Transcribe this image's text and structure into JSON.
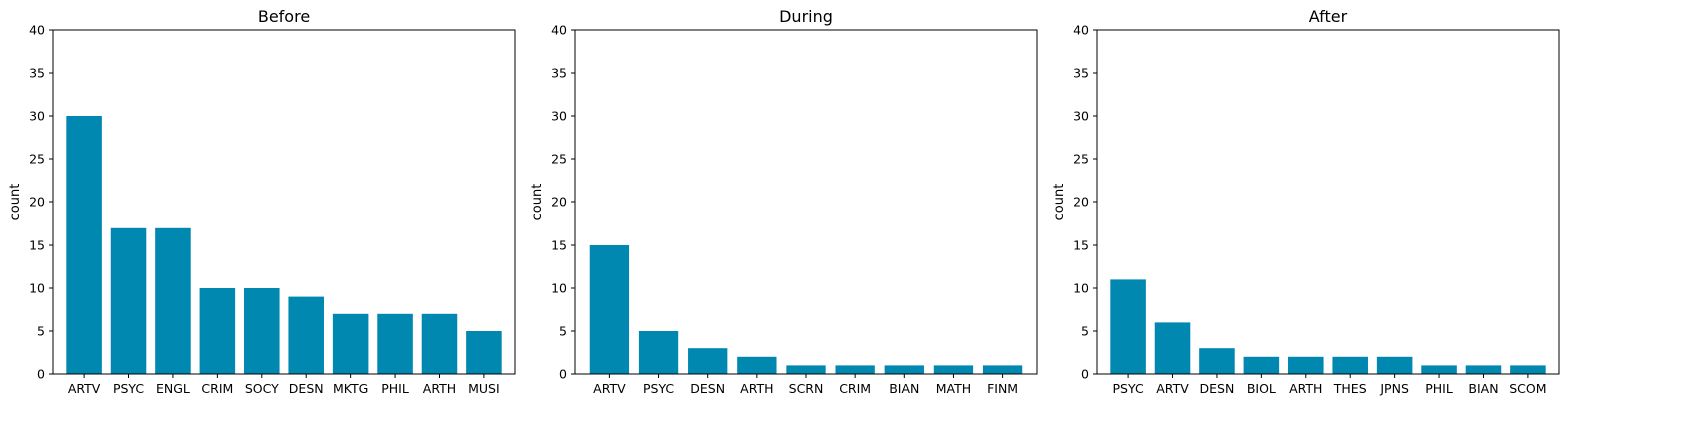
{
  "bar_color": "#0088b0",
  "chart_data": [
    {
      "type": "bar",
      "title": "Before",
      "xlabel": "",
      "ylabel": "count",
      "ylim": [
        0,
        40
      ],
      "yticks": [
        0,
        5,
        10,
        15,
        20,
        25,
        30,
        35,
        40
      ],
      "categories": [
        "ARTV",
        "PSYC",
        "ENGL",
        "CRIM",
        "SOCY",
        "DESN",
        "MKTG",
        "PHIL",
        "ARTH",
        "MUSI"
      ],
      "values": [
        30,
        17,
        17,
        10,
        10,
        9,
        7,
        7,
        7,
        5
      ]
    },
    {
      "type": "bar",
      "title": "During",
      "xlabel": "",
      "ylabel": "count",
      "ylim": [
        0,
        40
      ],
      "yticks": [
        0,
        5,
        10,
        15,
        20,
        25,
        30,
        35,
        40
      ],
      "categories": [
        "ARTV",
        "PSYC",
        "DESN",
        "ARTH",
        "SCRN",
        "CRIM",
        "BIAN",
        "MATH",
        "FINM"
      ],
      "values": [
        15,
        5,
        3,
        2,
        1,
        1,
        1,
        1,
        1
      ]
    },
    {
      "type": "bar",
      "title": "After",
      "xlabel": "",
      "ylabel": "count",
      "ylim": [
        0,
        40
      ],
      "yticks": [
        0,
        5,
        10,
        15,
        20,
        25,
        30,
        35,
        40
      ],
      "categories": [
        "PSYC",
        "ARTV",
        "DESN",
        "BIOL",
        "ARTH",
        "THES",
        "JPNS",
        "PHIL",
        "BIAN",
        "SCOM"
      ],
      "values": [
        11,
        6,
        3,
        2,
        2,
        2,
        2,
        1,
        1,
        1
      ]
    }
  ]
}
